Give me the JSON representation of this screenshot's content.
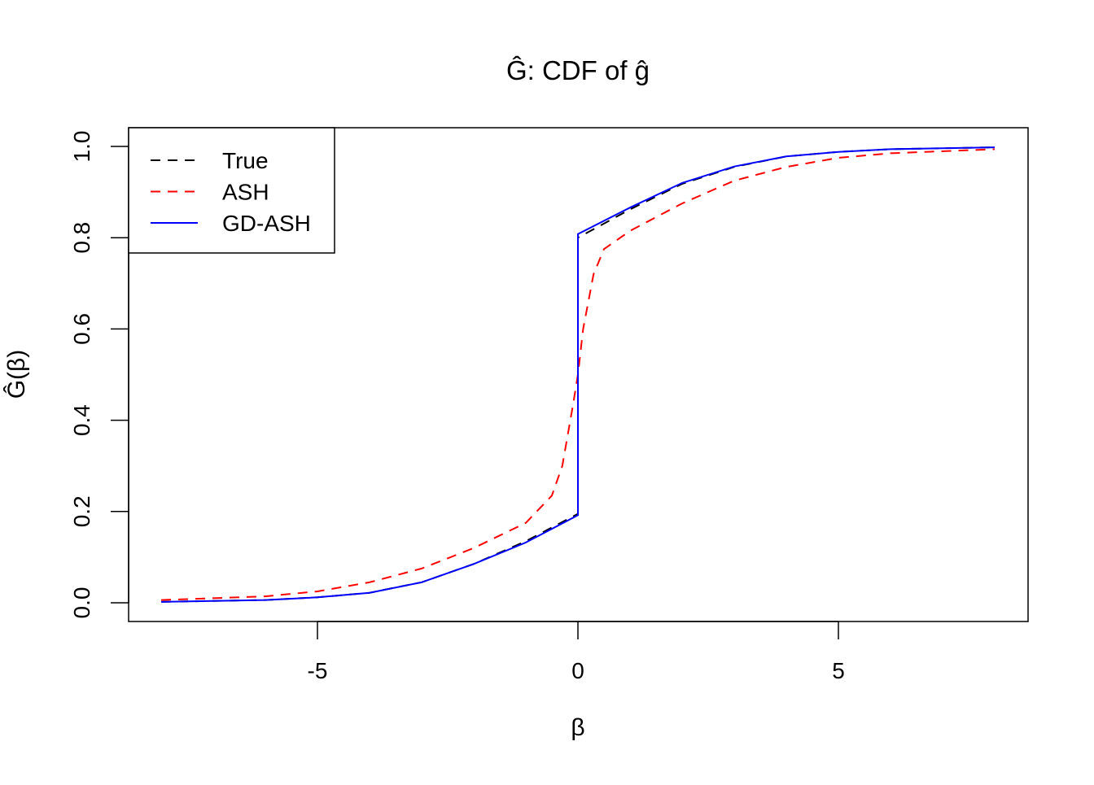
{
  "chart_data": {
    "type": "line",
    "title": "Ĝ: CDF of ĝ",
    "xlabel": "β",
    "ylabel": "Ĝ(β)",
    "xlim": [
      -8.6,
      8.6
    ],
    "ylim": [
      -0.04,
      1.04
    ],
    "xticks": [
      -5,
      0,
      5
    ],
    "xtick_labels": [
      "-5",
      "0",
      "5"
    ],
    "yticks": [
      0,
      0.2,
      0.4,
      0.6,
      0.8,
      1.0
    ],
    "ytick_labels": [
      "0.0",
      "0.2",
      "0.4",
      "0.6",
      "0.8",
      "1.0"
    ],
    "grid": false,
    "legend_position": "top-left",
    "series": [
      {
        "name": "True",
        "color": "#000000",
        "style": "dashed",
        "x": [
          -8,
          -6,
          -5,
          -4,
          -3,
          -2,
          -1,
          -0.5,
          0,
          0,
          1,
          2,
          3,
          4,
          5,
          6,
          8
        ],
        "y": [
          0.002,
          0.006,
          0.012,
          0.022,
          0.045,
          0.085,
          0.135,
          0.165,
          0.195,
          0.8,
          0.862,
          0.918,
          0.955,
          0.978,
          0.988,
          0.994,
          0.998
        ]
      },
      {
        "name": "ASH",
        "color": "#ff0000",
        "style": "dashed",
        "x": [
          -8,
          -6,
          -5,
          -4,
          -3,
          -2,
          -1,
          -0.5,
          -0.3,
          -0.1,
          0,
          0.1,
          0.3,
          0.5,
          1,
          2,
          3,
          4,
          5,
          6,
          8
        ],
        "y": [
          0.006,
          0.014,
          0.025,
          0.045,
          0.075,
          0.12,
          0.175,
          0.235,
          0.3,
          0.43,
          0.5,
          0.6,
          0.72,
          0.775,
          0.815,
          0.875,
          0.925,
          0.955,
          0.975,
          0.985,
          0.994
        ]
      },
      {
        "name": "GD-ASH",
        "color": "#0000ff",
        "style": "solid",
        "x": [
          -8,
          -6,
          -5,
          -4,
          -3,
          -2,
          -1,
          -0.5,
          0,
          0,
          1,
          2,
          3,
          4,
          5,
          6,
          8
        ],
        "y": [
          0.002,
          0.006,
          0.012,
          0.022,
          0.045,
          0.085,
          0.132,
          0.162,
          0.192,
          0.808,
          0.866,
          0.92,
          0.956,
          0.978,
          0.988,
          0.994,
          0.998
        ]
      }
    ]
  }
}
